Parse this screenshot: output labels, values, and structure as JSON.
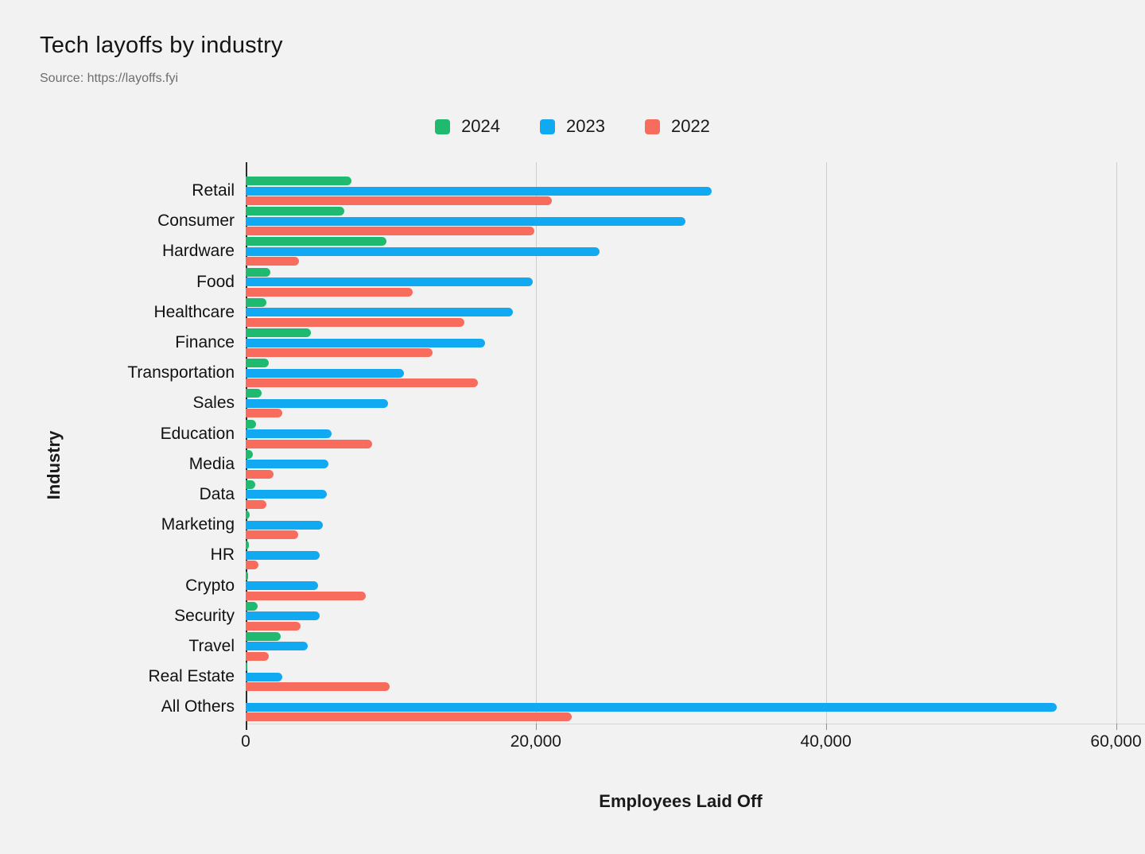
{
  "header": {
    "title": "Tech layoffs by industry",
    "source": "Source: https://layoffs.fyi"
  },
  "axes": {
    "x_title": "Employees Laid Off",
    "y_title": "Industry",
    "x_ticks": [
      {
        "value": 0,
        "label": "0"
      },
      {
        "value": 20000,
        "label": "20,000"
      },
      {
        "value": 40000,
        "label": "40,000"
      },
      {
        "value": 60000,
        "label": "60,000"
      }
    ]
  },
  "chart_data": {
    "type": "bar",
    "orientation": "horizontal",
    "title": "Tech layoffs by industry",
    "xlabel": "Employees Laid Off",
    "ylabel": "Industry",
    "xlim": [
      0,
      62000
    ],
    "grid": "vertical",
    "legend_position": "top-center",
    "categories": [
      "Retail",
      "Consumer",
      "Hardware",
      "Food",
      "Healthcare",
      "Finance",
      "Transportation",
      "Sales",
      "Education",
      "Media",
      "Data",
      "Marketing",
      "HR",
      "Crypto",
      "Security",
      "Travel",
      "Real Estate",
      "All Others"
    ],
    "series": [
      {
        "name": "2024",
        "color": "#1fb96f",
        "values": [
          7300,
          6800,
          9700,
          1700,
          1400,
          4500,
          1600,
          1100,
          700,
          500,
          650,
          250,
          200,
          150,
          800,
          2400,
          100,
          0
        ]
      },
      {
        "name": "2023",
        "color": "#12a9f3",
        "values": [
          32100,
          30300,
          24400,
          19800,
          18400,
          16500,
          10900,
          9800,
          5900,
          5700,
          5600,
          5300,
          5100,
          5000,
          5100,
          4300,
          2500,
          55900
        ]
      },
      {
        "name": "2022",
        "color": "#f86c5e",
        "values": [
          21100,
          19900,
          3700,
          11500,
          15100,
          12900,
          16000,
          2500,
          8700,
          1900,
          1400,
          3600,
          850,
          8300,
          3800,
          1600,
          9900,
          22500
        ]
      }
    ]
  }
}
